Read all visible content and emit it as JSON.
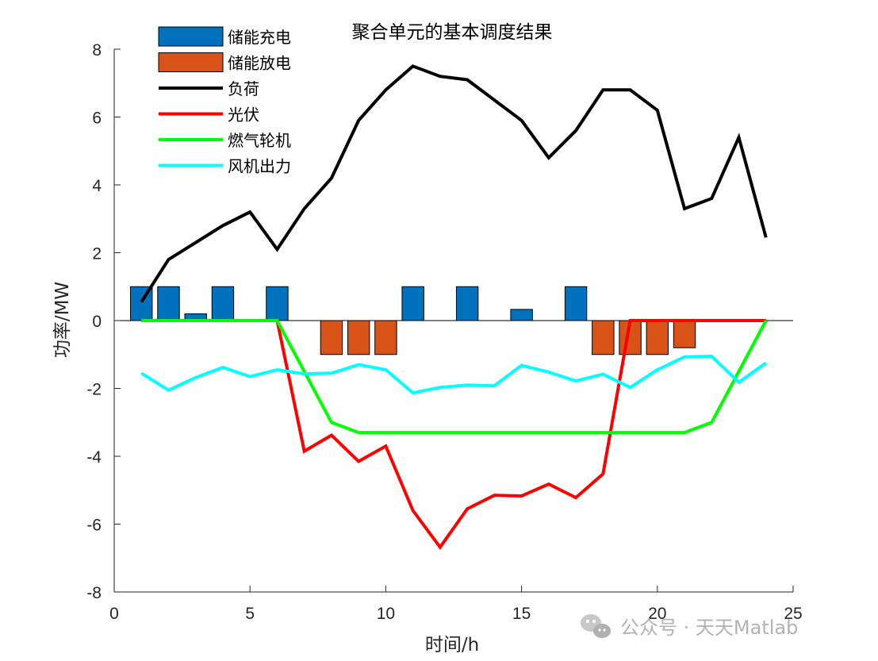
{
  "watermark": "公众号 · 天天Matlab",
  "chart_data": {
    "type": "bar+line",
    "title": "聚合单元的基本调度结果",
    "xlabel": "时间/h",
    "ylabel": "功率/MW",
    "xlim": [
      0,
      25
    ],
    "ylim": [
      -8,
      8
    ],
    "xticks": [
      0,
      5,
      10,
      15,
      20,
      25
    ],
    "yticks": [
      -8,
      -6,
      -4,
      -2,
      0,
      2,
      4,
      6,
      8
    ],
    "legend_position": "top-left",
    "x": [
      1,
      2,
      3,
      4,
      5,
      6,
      7,
      8,
      9,
      10,
      11,
      12,
      13,
      14,
      15,
      16,
      17,
      18,
      19,
      20,
      21,
      22,
      23,
      24
    ],
    "bar_series": [
      {
        "name": "储能充电",
        "color": "#0072BD",
        "values": [
          1,
          1,
          0.2,
          1,
          0,
          1,
          0,
          0,
          0,
          0,
          1,
          0,
          1,
          0,
          0.33,
          0,
          1,
          0,
          0,
          0,
          0,
          0,
          0,
          0
        ]
      },
      {
        "name": "储能放电",
        "color": "#D95319",
        "values": [
          0,
          0,
          0,
          0,
          0,
          0,
          0,
          -1,
          -1,
          -1,
          0,
          0,
          0,
          0,
          0,
          0,
          0,
          -1,
          -1,
          -1,
          -0.8,
          0,
          0,
          0
        ]
      }
    ],
    "line_series": [
      {
        "name": "负荷",
        "color": "#000000",
        "values": [
          0.55,
          1.8,
          2.3,
          2.8,
          3.2,
          2.1,
          3.3,
          4.2,
          5.9,
          6.8,
          7.5,
          7.2,
          7.1,
          6.5,
          5.9,
          4.8,
          5.6,
          6.8,
          6.8,
          6.2,
          3.3,
          3.6,
          5.4,
          2.45
        ]
      },
      {
        "name": "光伏",
        "color": "#FF0000",
        "values": [
          0,
          0,
          0,
          0,
          0,
          0,
          -3.85,
          -3.38,
          -4.15,
          -3.7,
          -5.6,
          -6.68,
          -5.55,
          -5.15,
          -5.17,
          -4.82,
          -5.22,
          -4.52,
          0,
          0,
          0,
          0,
          0,
          0
        ]
      },
      {
        "name": "燃气轮机",
        "color": "#00FF00",
        "values": [
          0,
          0,
          0,
          0,
          0,
          0,
          -1.5,
          -3.0,
          -3.3,
          -3.3,
          -3.3,
          -3.3,
          -3.3,
          -3.3,
          -3.3,
          -3.3,
          -3.3,
          -3.3,
          -3.3,
          -3.3,
          -3.3,
          -3.0,
          -1.5,
          0
        ]
      },
      {
        "name": "风机出力",
        "color": "#00FFFF",
        "values": [
          -1.55,
          -2.05,
          -1.68,
          -1.38,
          -1.65,
          -1.45,
          -1.57,
          -1.55,
          -1.3,
          -1.45,
          -2.13,
          -1.97,
          -1.9,
          -1.92,
          -1.32,
          -1.52,
          -1.78,
          -1.58,
          -1.97,
          -1.45,
          -1.07,
          -1.05,
          -1.82,
          -1.25
        ]
      }
    ]
  }
}
